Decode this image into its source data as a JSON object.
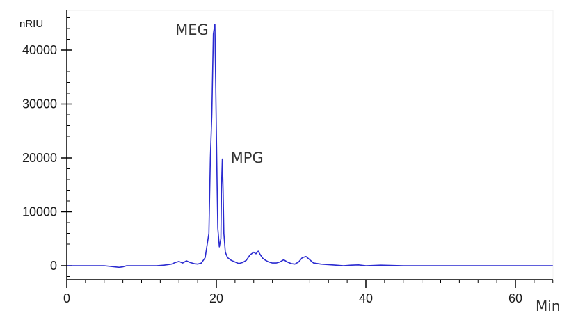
{
  "chart_data": {
    "type": "line",
    "title": "",
    "ylabel": "nRIU",
    "xlabel": "Min",
    "xlim": [
      0,
      65
    ],
    "ylim": [
      -2600,
      47000
    ],
    "xticks": [
      0,
      20,
      40,
      60
    ],
    "yticks": [
      0,
      10000,
      20000,
      30000,
      40000
    ],
    "x_minor_step": 2.5,
    "y_minor_step": 2000,
    "grid": false,
    "legend": "none",
    "line_color": "#2a2ad0",
    "annotations": [
      {
        "text": "MEG",
        "x": 19.7,
        "y": 44800
      },
      {
        "text": "MPG",
        "x": 20.9,
        "y": 19800
      }
    ],
    "series": [
      {
        "x": [
          0,
          5,
          7,
          7.5,
          8,
          10,
          12,
          13,
          14,
          14.5,
          15,
          15.5,
          16,
          16.5,
          17,
          17.5,
          18,
          18.5,
          19,
          19.2,
          19.4,
          19.6,
          19.8,
          20.0,
          20.1,
          20.2,
          20.4,
          20.6,
          20.7,
          20.8,
          20.9,
          21.0,
          21.2,
          21.5,
          22,
          22.5,
          23,
          23.5,
          24,
          24.5,
          25,
          25.3,
          25.6,
          25.9,
          26.2,
          26.6,
          27,
          27.5,
          28,
          28.5,
          29,
          29.5,
          30,
          30.5,
          31,
          31.5,
          32,
          32.5,
          33,
          34,
          35,
          36,
          37,
          38,
          39,
          40,
          42,
          45,
          50,
          55,
          60,
          65
        ],
        "y": [
          0,
          0,
          -300,
          -200,
          0,
          0,
          0,
          100,
          300,
          600,
          800,
          500,
          900,
          600,
          400,
          300,
          500,
          1500,
          6000,
          20000,
          28000,
          43000,
          44800,
          25000,
          15000,
          7000,
          3500,
          5000,
          15000,
          19800,
          14000,
          6000,
          2500,
          1500,
          1000,
          700,
          400,
          600,
          1000,
          2000,
          2500,
          2200,
          2700,
          2000,
          1400,
          1000,
          700,
          500,
          500,
          700,
          1100,
          700,
          400,
          300,
          700,
          1500,
          1700,
          1100,
          500,
          300,
          200,
          100,
          0,
          100,
          150,
          0,
          100,
          0,
          0,
          0,
          0,
          0
        ]
      }
    ]
  }
}
